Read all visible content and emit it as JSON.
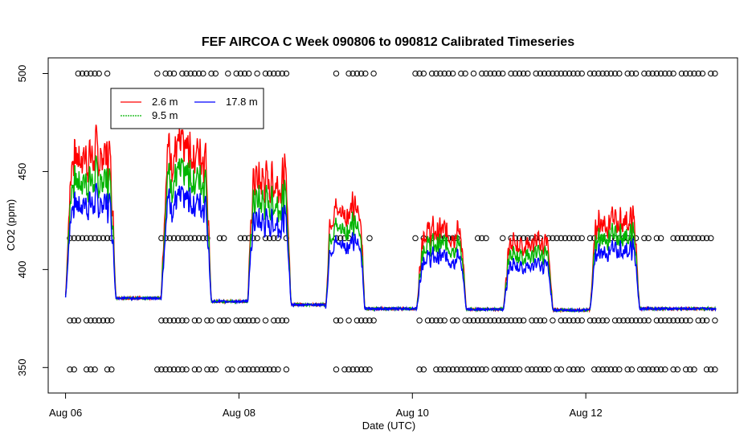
{
  "chart_data": {
    "type": "line",
    "title": "FEF AIRCOA C  Week 090806 to 090812  Calibrated Timeseries",
    "xlabel": "Date (UTC)",
    "ylabel": "CO2 (ppm)",
    "xlim_days": [
      5.8,
      13.75
    ],
    "ylim": [
      337,
      508
    ],
    "x_ticks": [
      {
        "day": 6,
        "label": "Aug 06"
      },
      {
        "day": 8,
        "label": "Aug 08"
      },
      {
        "day": 10,
        "label": "Aug 10"
      },
      {
        "day": 12,
        "label": "Aug 12"
      }
    ],
    "y_ticks": [
      {
        "value": 350,
        "label": "350"
      },
      {
        "value": 400,
        "label": "400"
      },
      {
        "value": 450,
        "label": "450"
      },
      {
        "value": 500,
        "label": "500"
      }
    ],
    "grid": false,
    "legend_position": "top-left",
    "series": [
      {
        "name": "2.6 m",
        "color": "#ff0000",
        "base": 0,
        "amp": 1.35
      },
      {
        "name": "9.5 m",
        "color": "#00b400",
        "base": 0,
        "amp": 1.12
      },
      {
        "name": "17.8 m",
        "color": "#0000ff",
        "base": 0,
        "amp": 0.9
      }
    ],
    "episodes": [
      {
        "start": 6.0,
        "end": 6.58,
        "peak": 55,
        "night": 386
      },
      {
        "start": 7.1,
        "end": 7.68,
        "peak": 58,
        "night": 384
      },
      {
        "start": 8.1,
        "end": 8.6,
        "peak": 48,
        "night": 383
      },
      {
        "start": 9.0,
        "end": 9.45,
        "peak": 38,
        "night": 380
      },
      {
        "start": 10.05,
        "end": 10.62,
        "peak": 30,
        "night": 380
      },
      {
        "start": 11.05,
        "end": 11.62,
        "peak": 26,
        "night": 379
      },
      {
        "start": 12.05,
        "end": 12.62,
        "peak": 34,
        "night": 380
      }
    ],
    "flag_levels": [
      500,
      416,
      374,
      349
    ],
    "flag_gaps": [
      [
        6.55,
        7.05
      ],
      [
        8.55,
        9.1
      ],
      [
        9.6,
        10.0
      ],
      [
        12.0,
        12.05
      ]
    ],
    "flag_range": [
      6.05,
      13.5
    ]
  }
}
